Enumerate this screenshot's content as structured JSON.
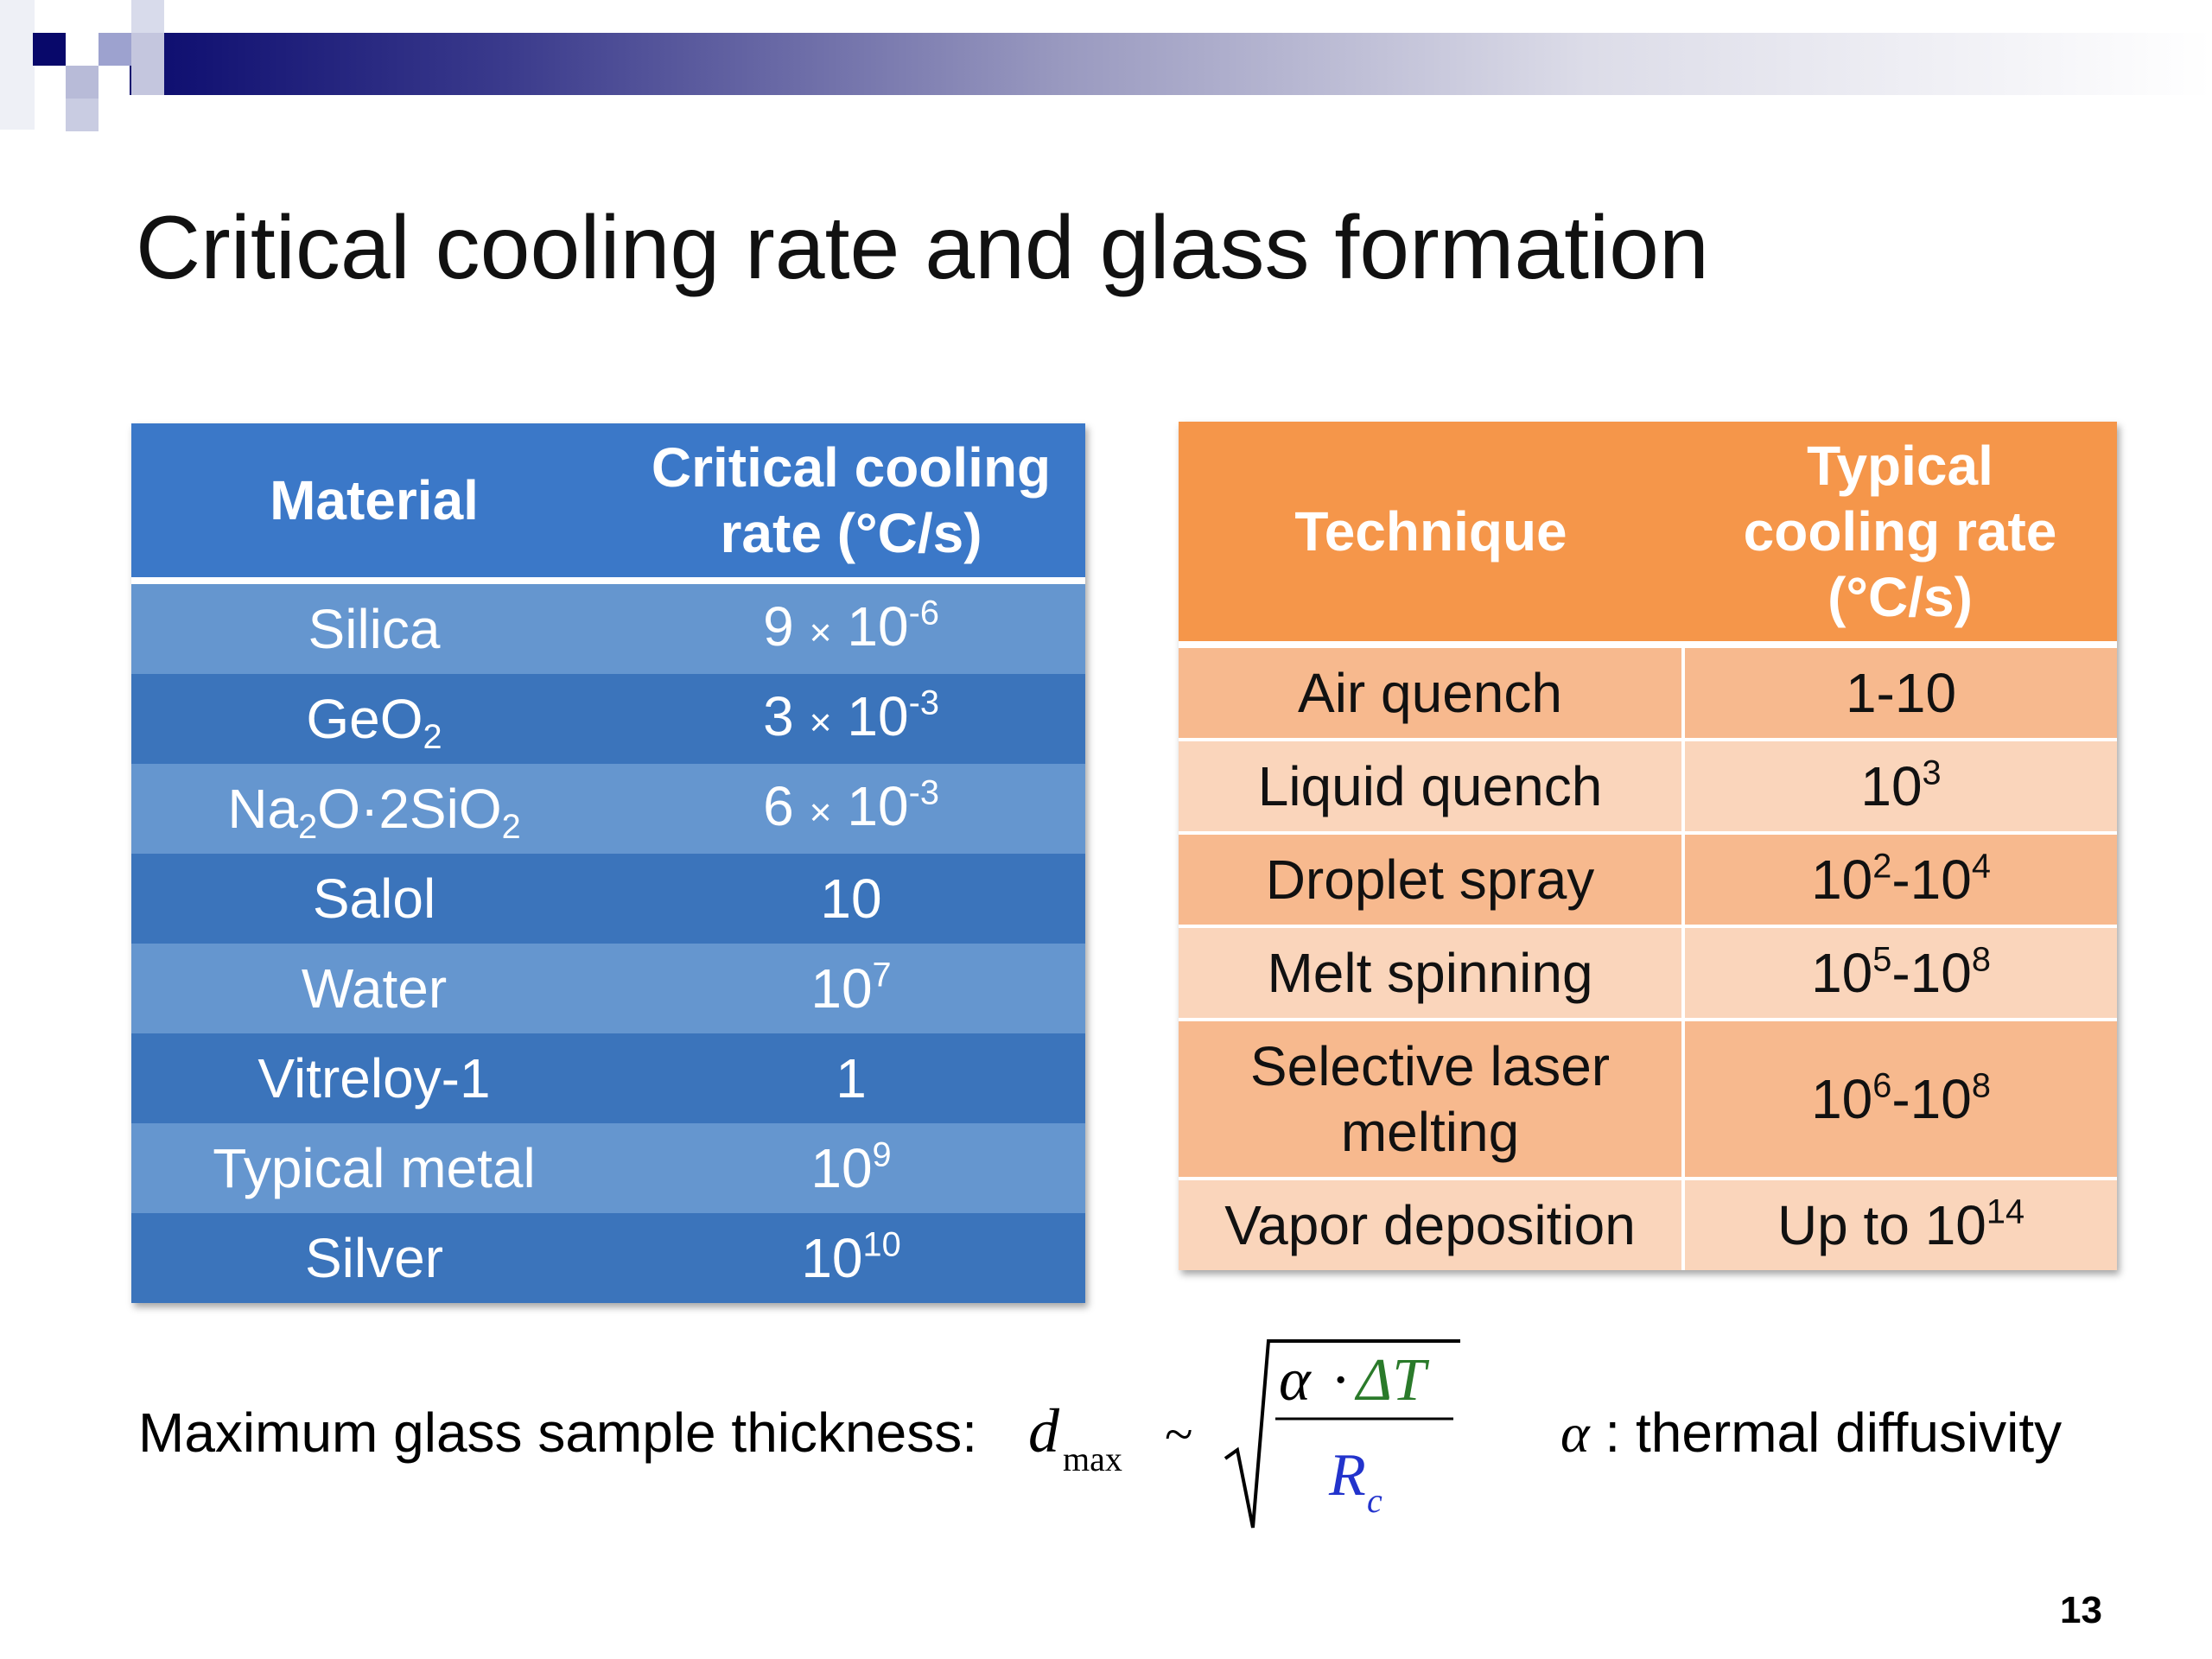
{
  "slide": {
    "title": "Critical cooling rate and glass formation",
    "page_number": "13"
  },
  "materials_table": {
    "headers": {
      "col1": "Material",
      "col2_line1": "Critical cooling",
      "col2_line2": "rate (°C/s)"
    },
    "rows": [
      {
        "material": "Silica",
        "rate_mantissa": "9",
        "times": "×",
        "rate_base": "10",
        "rate_exp": "-6"
      },
      {
        "material_main": "GeO",
        "material_sub": "2",
        "rate_mantissa": "3",
        "times": "×",
        "rate_base": "10",
        "rate_exp": "-3"
      },
      {
        "m_a": "Na",
        "m_a_sub": "2",
        "m_b": "O·2SiO",
        "m_b_sub": "2",
        "rate_mantissa": "6",
        "times": "×",
        "rate_base": "10",
        "rate_exp": "-3"
      },
      {
        "material": "Salol",
        "rate": "10"
      },
      {
        "material": "Water",
        "rate_base": "10",
        "rate_exp": "7"
      },
      {
        "material": "Vitreloy-1",
        "rate": "1"
      },
      {
        "material": "Typical metal",
        "rate_base": "10",
        "rate_exp": "9"
      },
      {
        "material": "Silver",
        "rate_base": "10",
        "rate_exp": "10"
      }
    ]
  },
  "techniques_table": {
    "headers": {
      "col1": "Technique",
      "col2_line1": "Typical",
      "col2_line2": "cooling rate",
      "col2_line3": "(°C/s)"
    },
    "rows": [
      {
        "technique": "Air quench",
        "rate": "1-10"
      },
      {
        "technique": "Liquid quench",
        "rate_base": "10",
        "rate_exp": "3"
      },
      {
        "technique": "Droplet spray",
        "a_base": "10",
        "a_exp": "2",
        "dash": "-",
        "b_base": "10",
        "b_exp": "4"
      },
      {
        "technique": "Melt spinning",
        "a_base": "10",
        "a_exp": "5",
        "dash": "-",
        "b_base": "10",
        "b_exp": "8"
      },
      {
        "technique_line1": "Selective laser",
        "technique_line2": "melting",
        "a_base": "10",
        "a_exp": "6",
        "dash": "-",
        "b_base": "10",
        "b_exp": "8"
      },
      {
        "technique": "Vapor deposition",
        "prefix": "Up to ",
        "rate_base": "10",
        "rate_exp": "14"
      }
    ]
  },
  "formula": {
    "label": "Maximum glass sample thickness:",
    "lhs": "d",
    "lhs_sub": "max",
    "relation": "~",
    "numerator_alpha": "α",
    "numerator_dot": "·",
    "numerator_dT": "ΔT",
    "denominator": "R",
    "denominator_sub": "c",
    "alpha_symbol": "α",
    "alpha_desc": " : thermal diffusivity",
    "colors": {
      "numerator_dT": "#2a7a2a",
      "denominator": "#2233cc"
    }
  }
}
